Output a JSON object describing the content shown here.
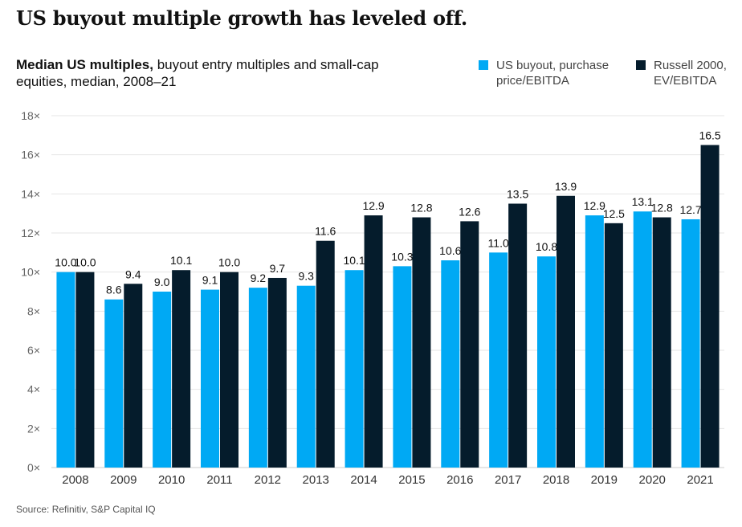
{
  "headline": "US buyout multiple growth has leveled off.",
  "subtitle_bold": "Median US multiples,",
  "subtitle_rest": " buyout entry multiples and small-cap equities, median, 2008–21",
  "source": "Source: Refinitiv, S&P Capital IQ",
  "colors": {
    "buyout": "#00a9f4",
    "russell": "#051c2c",
    "grid": "#e6e6e6"
  },
  "chart_data": {
    "type": "bar",
    "categories": [
      "2008",
      "2009",
      "2010",
      "2011",
      "2012",
      "2013",
      "2014",
      "2015",
      "2016",
      "2017",
      "2018",
      "2019",
      "2020",
      "2021"
    ],
    "series": [
      {
        "name": "US buyout, purchase price/EBITDA",
        "values": [
          10.0,
          8.6,
          9.0,
          9.1,
          9.2,
          9.3,
          10.1,
          10.3,
          10.6,
          11.0,
          10.8,
          12.9,
          13.1,
          12.7
        ]
      },
      {
        "name": "Russell 2000, EV/EBITDA",
        "values": [
          10.0,
          9.4,
          10.1,
          10.0,
          9.7,
          11.6,
          12.9,
          12.8,
          12.6,
          13.5,
          13.9,
          12.5,
          12.8,
          16.5
        ]
      }
    ],
    "data_labels": [
      [
        "10.0",
        "8.6",
        "9.0",
        "9.1",
        "9.2",
        "9.3",
        "10.1",
        "10.3",
        "10.6",
        "11.0",
        "10.8",
        "12.9",
        "13.1",
        "12.7"
      ],
      [
        "10.0",
        "9.4",
        "10.1",
        "10.0",
        "9.7",
        "11.6",
        "12.9",
        "12.8",
        "12.6",
        "13.5",
        "13.9",
        "12.5",
        "12.8",
        "16.5"
      ]
    ],
    "ylim": [
      0,
      18
    ],
    "yticks": [
      0,
      2,
      4,
      6,
      8,
      10,
      12,
      14,
      16,
      18
    ],
    "ytick_labels": [
      "0×",
      "2×",
      "4×",
      "6×",
      "8×",
      "10×",
      "12×",
      "14×",
      "16×",
      "18×"
    ],
    "grid": true,
    "legend_position": "top-right",
    "xlabel": "",
    "ylabel": ""
  }
}
